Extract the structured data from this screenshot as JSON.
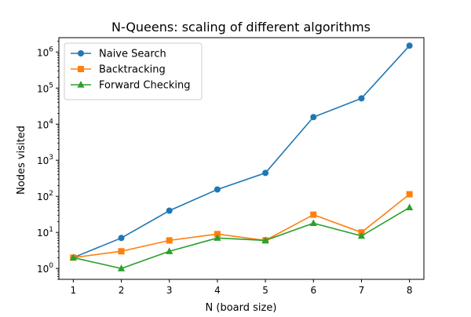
{
  "chart_data": {
    "type": "line",
    "title": "N-Queens: scaling of different algorithms",
    "xlabel": "N (board size)",
    "ylabel": "Nodes visited",
    "yscale": "log",
    "xlim": [
      0.7,
      8.3
    ],
    "ylim": [
      0.5,
      2500000
    ],
    "x": [
      1,
      2,
      3,
      4,
      5,
      6,
      7,
      8
    ],
    "x_ticks": [
      1,
      2,
      3,
      4,
      5,
      6,
      7,
      8
    ],
    "y_ticks": [
      {
        "value": 1,
        "base": "10",
        "exp": "0"
      },
      {
        "value": 10,
        "base": "10",
        "exp": "1"
      },
      {
        "value": 100,
        "base": "10",
        "exp": "2"
      },
      {
        "value": 1000,
        "base": "10",
        "exp": "3"
      },
      {
        "value": 10000,
        "base": "10",
        "exp": "4"
      },
      {
        "value": 100000,
        "base": "10",
        "exp": "5"
      },
      {
        "value": 1000000,
        "base": "10",
        "exp": "6"
      }
    ],
    "grid": false,
    "legend_position": "top-left",
    "series": [
      {
        "name": "Naive Search",
        "marker": "circle",
        "color": "#1f77b4",
        "values": [
          2,
          7,
          40,
          155,
          445,
          15700,
          52000,
          1500000
        ]
      },
      {
        "name": "Backtracking",
        "marker": "square",
        "color": "#ff7f0e",
        "values": [
          2,
          3,
          6,
          9,
          6,
          31,
          10,
          114
        ]
      },
      {
        "name": "Forward Checking",
        "marker": "triangle",
        "color": "#2ca02c",
        "values": [
          2,
          1,
          3,
          7,
          6,
          18,
          8,
          49
        ]
      }
    ]
  }
}
